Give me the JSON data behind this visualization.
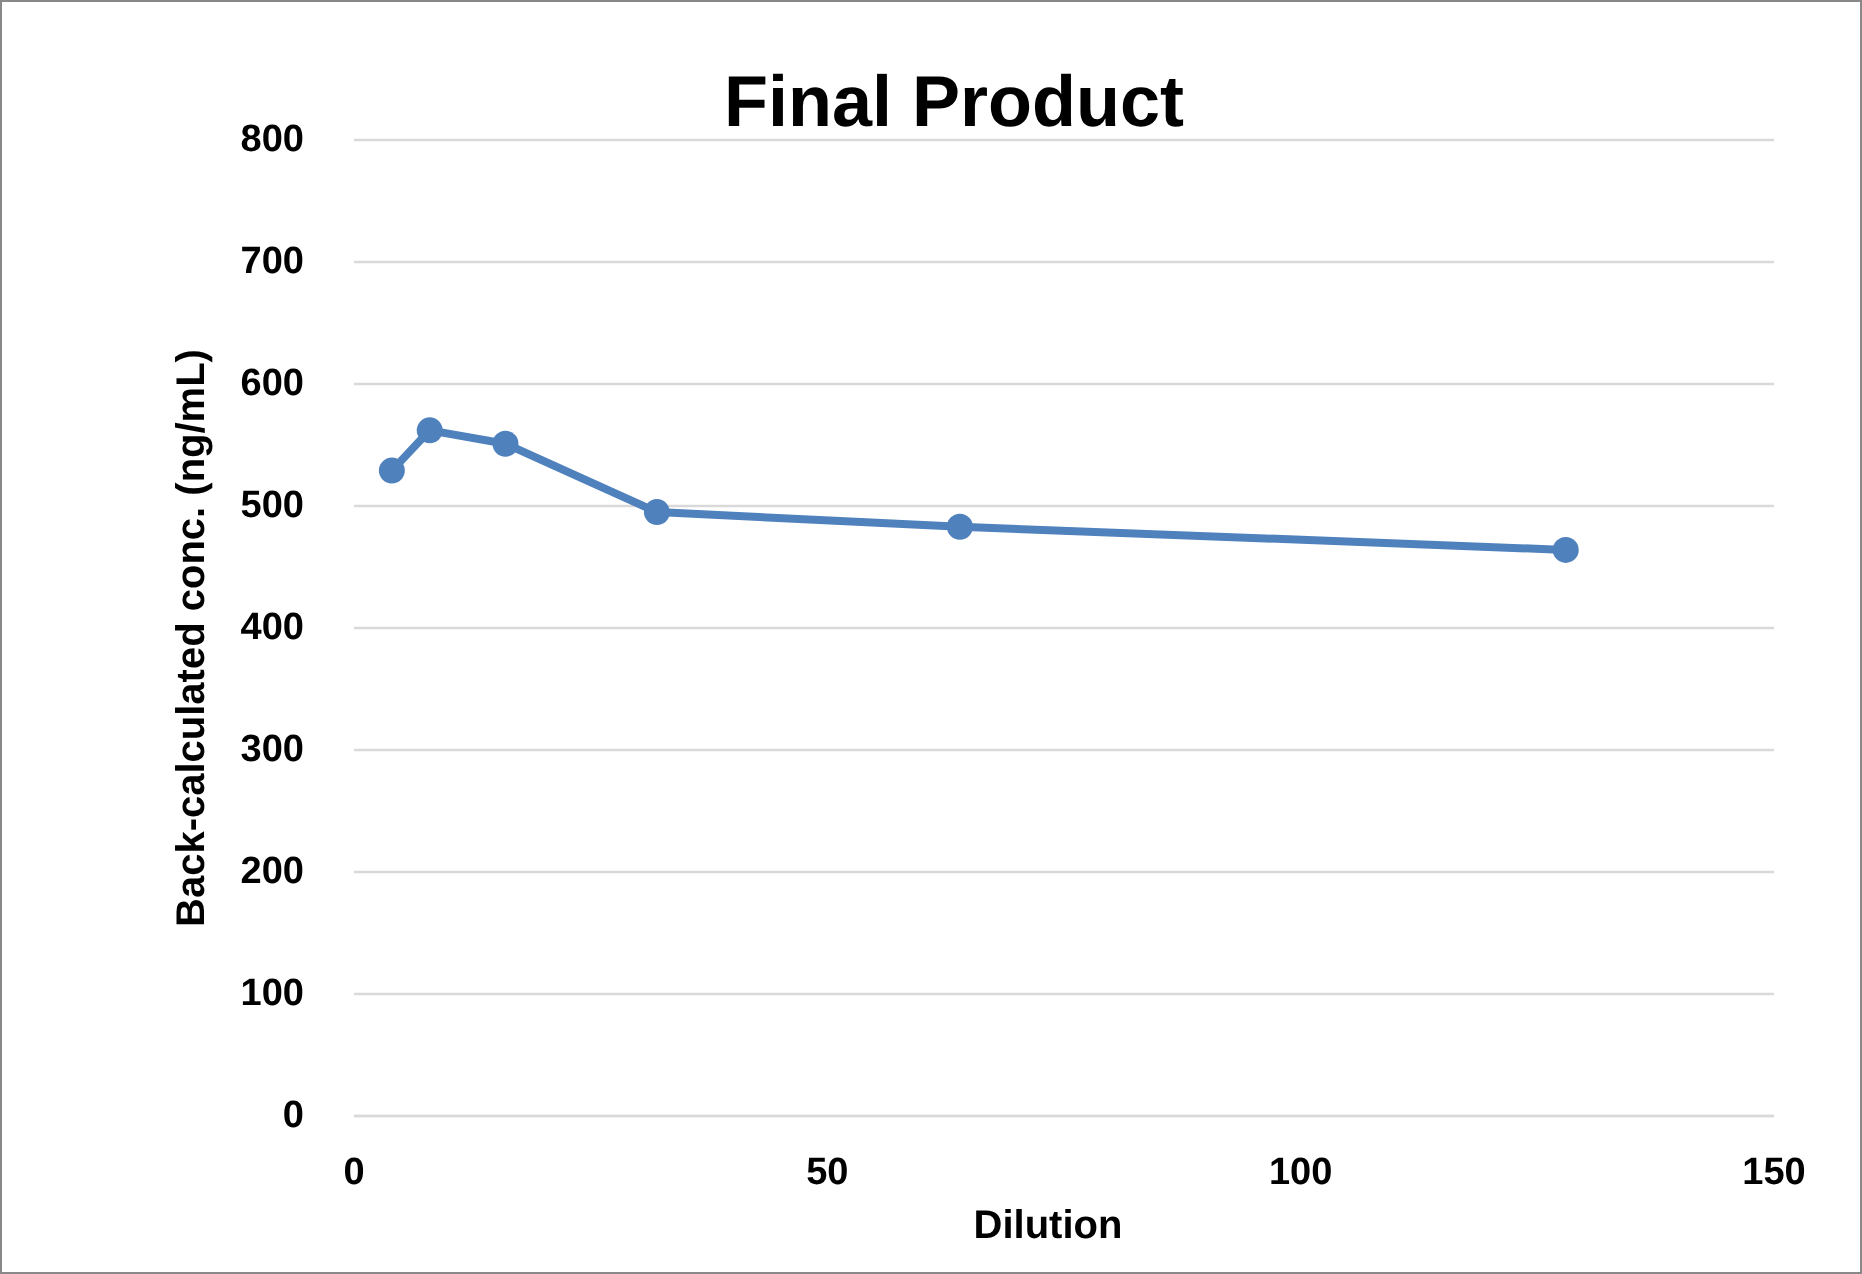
{
  "chart_data": {
    "type": "line",
    "title": "Final Product",
    "xlabel": "Dilution",
    "ylabel": "Back-calculated conc. (ng/mL)",
    "x": [
      4,
      8,
      16,
      32,
      64,
      128
    ],
    "series": [
      {
        "color": "#4f81bd",
        "values": [
          529,
          562,
          551,
          495,
          483,
          464
        ]
      }
    ],
    "xlim": [
      0,
      150
    ],
    "xticks": [
      0,
      50,
      100,
      150
    ],
    "ylim": [
      0,
      800
    ],
    "yticks": [
      0,
      100,
      200,
      300,
      400,
      500,
      600,
      700,
      800
    ],
    "grid": "y",
    "marker": "circle",
    "line_style": "solid"
  }
}
